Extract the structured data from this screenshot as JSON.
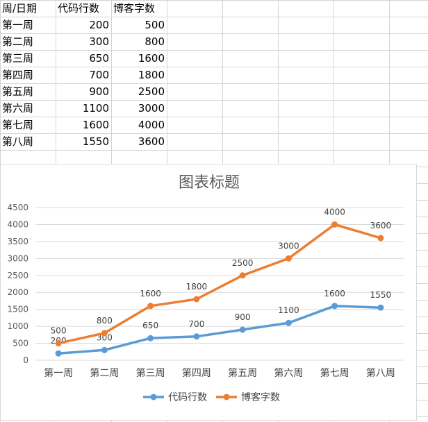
{
  "table": {
    "headers": [
      "周/日期",
      "代码行数",
      "博客字数"
    ],
    "rows": [
      [
        "第一周",
        "200",
        "500"
      ],
      [
        "第二周",
        "300",
        "800"
      ],
      [
        "第三周",
        "650",
        "1600"
      ],
      [
        "第四周",
        "700",
        "1800"
      ],
      [
        "第五周",
        "900",
        "2500"
      ],
      [
        "第六周",
        "1100",
        "3000"
      ],
      [
        "第七周",
        "1600",
        "4000"
      ],
      [
        "第八周",
        "1550",
        "3600"
      ]
    ]
  },
  "chart_data": {
    "type": "line",
    "title": "图表标题",
    "categories": [
      "第一周",
      "第二周",
      "第三周",
      "第四周",
      "第五周",
      "第六周",
      "第七周",
      "第八周"
    ],
    "series": [
      {
        "name": "代码行数",
        "values": [
          200,
          300,
          650,
          700,
          900,
          1100,
          1600,
          1550
        ],
        "color": "#5b9bd5"
      },
      {
        "name": "博客字数",
        "values": [
          500,
          800,
          1600,
          1800,
          2500,
          3000,
          4000,
          3600
        ],
        "color": "#ed7d31"
      }
    ],
    "ylim": [
      0,
      4500
    ],
    "yticks": [
      0,
      500,
      1000,
      1500,
      2000,
      2500,
      3000,
      3500,
      4000,
      4500
    ],
    "grid": true,
    "legend": "bottom",
    "data_labels": true,
    "gridline_color": "#d9d9d9"
  },
  "sheet": {
    "gridline_color": "#d4d4d4"
  }
}
